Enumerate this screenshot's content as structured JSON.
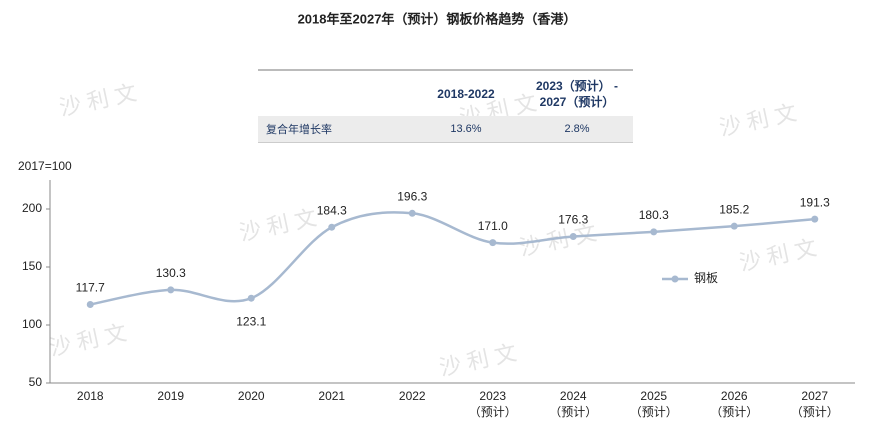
{
  "chart_data": {
    "type": "line",
    "title": "2018年至2027年（预计）钢板价格趋势（香港）",
    "y_label": "2017=100",
    "categories": [
      "2018",
      "2019",
      "2020",
      "2021",
      "2022",
      "2023",
      "2024",
      "2025",
      "2026",
      "2027"
    ],
    "category_notes": [
      null,
      null,
      null,
      null,
      null,
      "（预计）",
      "（预计）",
      "（预计）",
      "（预计）",
      "（预计）"
    ],
    "series": [
      {
        "name": "钢板",
        "color": "#a7b9d0",
        "values": [
          117.7,
          130.3,
          123.1,
          184.3,
          196.3,
          171.0,
          176.3,
          180.3,
          185.2,
          191.3
        ],
        "value_labels": [
          "117.7",
          "130.3",
          "123.1",
          "184.3",
          "196.3",
          "171.0",
          "176.3",
          "180.3",
          "185.2",
          "191.3"
        ]
      }
    ],
    "ylim": [
      50,
      225
    ],
    "yticks": [
      50,
      100,
      150,
      200
    ],
    "grid": false,
    "legend": "right",
    "smooth": true
  },
  "table": {
    "header": [
      "2018-2022",
      "2023（预计） -\n2027（预计）"
    ],
    "rows": [
      [
        "复合年增长率",
        "13.6%",
        "2.8%"
      ]
    ]
  },
  "watermark": "沙 利 文"
}
